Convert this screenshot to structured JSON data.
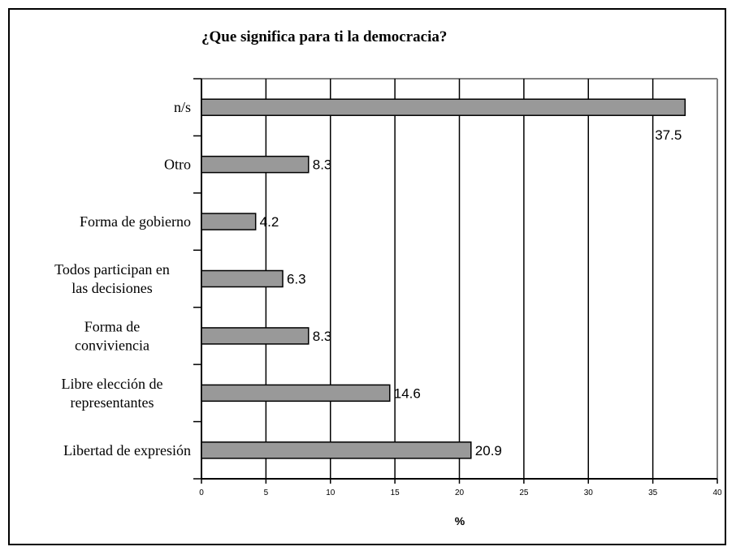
{
  "chart_data": {
    "type": "bar",
    "orientation": "horizontal",
    "title": "¿Que significa para ti la democracia?",
    "xlabel": "%",
    "ylabel": "",
    "xlim": [
      0,
      40
    ],
    "xticks": [
      "0",
      "5",
      "10",
      "15",
      "20",
      "25",
      "30",
      "35",
      "40"
    ],
    "grid": true,
    "legend": "none",
    "categories": [
      [
        "n/s"
      ],
      [
        "Otro"
      ],
      [
        "Forma de gobierno"
      ],
      [
        "Todos participan en",
        "las decisiones"
      ],
      [
        "Forma de",
        "conviviencia"
      ],
      [
        "Libre elección de",
        "representantes"
      ],
      [
        "Libertad de expresión"
      ]
    ],
    "values": [
      37.5,
      8.3,
      4.2,
      6.3,
      8.3,
      14.6,
      20.9
    ],
    "value_labels": [
      "37.5",
      "8.3",
      "4.2",
      "6.3",
      "8.3",
      "14.6",
      "20.9"
    ],
    "colors": {
      "bar_fill": "#999999",
      "bar_stroke": "#000000",
      "grid": "#000000",
      "plot_border": "#808080"
    }
  }
}
